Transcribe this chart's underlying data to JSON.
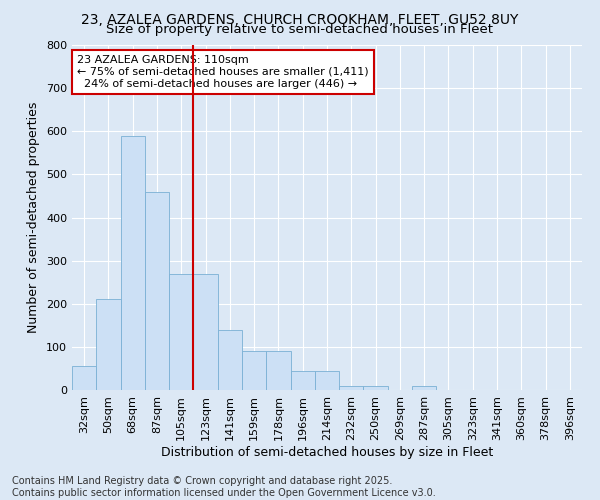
{
  "title_line1": "23, AZALEA GARDENS, CHURCH CROOKHAM, FLEET, GU52 8UY",
  "title_line2": "Size of property relative to semi-detached houses in Fleet",
  "xlabel": "Distribution of semi-detached houses by size in Fleet",
  "ylabel": "Number of semi-detached properties",
  "categories": [
    "32sqm",
    "50sqm",
    "68sqm",
    "87sqm",
    "105sqm",
    "123sqm",
    "141sqm",
    "159sqm",
    "178sqm",
    "196sqm",
    "214sqm",
    "232sqm",
    "250sqm",
    "269sqm",
    "287sqm",
    "305sqm",
    "323sqm",
    "341sqm",
    "360sqm",
    "378sqm",
    "396sqm"
  ],
  "values": [
    55,
    210,
    590,
    460,
    270,
    270,
    140,
    90,
    90,
    45,
    45,
    10,
    10,
    0,
    10,
    0,
    0,
    0,
    0,
    0,
    0
  ],
  "bar_color": "#cce0f5",
  "bar_edge_color": "#7ab0d4",
  "vline_x_index": 4.5,
  "vline_color": "#cc0000",
  "ylim": [
    0,
    800
  ],
  "yticks": [
    0,
    100,
    200,
    300,
    400,
    500,
    600,
    700,
    800
  ],
  "annotation_line1": "23 AZALEA GARDENS: 110sqm",
  "annotation_line2": "← 75% of semi-detached houses are smaller (1,411)",
  "annotation_line3": "  24% of semi-detached houses are larger (446) →",
  "annotation_box_color": "#ffffff",
  "annotation_box_edge": "#cc0000",
  "footer_line1": "Contains HM Land Registry data © Crown copyright and database right 2025.",
  "footer_line2": "Contains public sector information licensed under the Open Government Licence v3.0.",
  "background_color": "#dce8f5",
  "grid_color": "#ffffff",
  "title1_fontsize": 10,
  "title2_fontsize": 9.5,
  "axis_label_fontsize": 9,
  "tick_fontsize": 8,
  "annot_fontsize": 8,
  "footer_fontsize": 7
}
